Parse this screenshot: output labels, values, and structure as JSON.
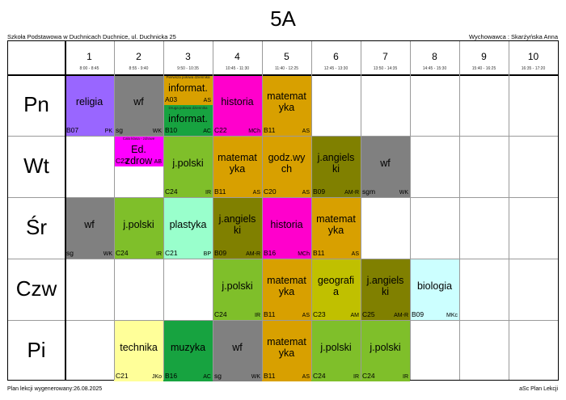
{
  "title": "5A",
  "school": "Szkoła Podstawowa w Duchnicach Duchnice, ul. Duchnicka 25",
  "teacher": "Wychowawca : Skarżyńska Anna",
  "footer_left": "Plan lekcji wygenerowany:26.08.2025",
  "footer_right": "aSc Plan Lekcji",
  "periods": [
    {
      "num": "1",
      "time": "8:00 - 8:45"
    },
    {
      "num": "2",
      "time": "8:55 - 9:40"
    },
    {
      "num": "3",
      "time": "9:50 - 10:35"
    },
    {
      "num": "4",
      "time": "10:45 - 11:30"
    },
    {
      "num": "5",
      "time": "11:40 - 12:25"
    },
    {
      "num": "6",
      "time": "12:45 - 13:30"
    },
    {
      "num": "7",
      "time": "13:50 - 14:35"
    },
    {
      "num": "8",
      "time": "14:45 - 15:30"
    },
    {
      "num": "9",
      "time": "15:40 - 16:25"
    },
    {
      "num": "10",
      "time": "16:35 - 17:20"
    }
  ],
  "days": [
    "Pn",
    "Wt",
    "Śr",
    "Czw",
    "Pi"
  ],
  "lessons": [
    {
      "day": 0,
      "period": 0,
      "subject": "religia",
      "room": "B07",
      "teacher": "PK",
      "color": "#9966ff"
    },
    {
      "day": 0,
      "period": 1,
      "subject": "wf",
      "room": "sg",
      "teacher": "WK",
      "color": "#808080"
    },
    {
      "day": 0,
      "period": 2,
      "half": "top",
      "note": "Pierwsza połowa dziennika",
      "subject": "informat.",
      "room": "A03",
      "teacher": "AS",
      "color": "#d8a000"
    },
    {
      "day": 0,
      "period": 2,
      "half": "bottom",
      "note": "Druga połowa dziennika",
      "subject": "informat.",
      "room": "B10",
      "teacher": "AC",
      "color": "#17a340"
    },
    {
      "day": 0,
      "period": 3,
      "subject": "historia",
      "room": "C22",
      "teacher": "MCh",
      "color": "#ff00cc"
    },
    {
      "day": 0,
      "period": 4,
      "subject": "matemat\nyka",
      "room": "B11",
      "teacher": "AS",
      "color": "#d8a000"
    },
    {
      "day": 1,
      "period": 1,
      "half": "top",
      "note": "Cała klasa - zdrowe",
      "subject": "Ed.\nzdrow",
      "room": "C22",
      "teacher": "AB",
      "color": "#ff00ff"
    },
    {
      "day": 1,
      "period": 2,
      "subject": "j.polski",
      "room": "C24",
      "teacher": "IR",
      "color": "#7fbf2a"
    },
    {
      "day": 1,
      "period": 3,
      "subject": "matemat\nyka",
      "room": "B11",
      "teacher": "AS",
      "color": "#d8a000"
    },
    {
      "day": 1,
      "period": 4,
      "subject": "godz.wy\nch",
      "room": "C20",
      "teacher": "AS",
      "color": "#d8a000"
    },
    {
      "day": 1,
      "period": 5,
      "subject": "j.angiels\nki",
      "room": "B09",
      "teacher": "AM-R",
      "color": "#808000"
    },
    {
      "day": 1,
      "period": 6,
      "subject": "wf",
      "room": "sgm",
      "teacher": "WK",
      "color": "#808080"
    },
    {
      "day": 2,
      "period": 0,
      "subject": "wf",
      "room": "sg",
      "teacher": "WK",
      "color": "#808080"
    },
    {
      "day": 2,
      "period": 1,
      "subject": "j.polski",
      "room": "C24",
      "teacher": "IR",
      "color": "#7fbf2a"
    },
    {
      "day": 2,
      "period": 2,
      "subject": "plastyka",
      "room": "C21",
      "teacher": "BP",
      "color": "#99ffcc"
    },
    {
      "day": 2,
      "period": 3,
      "subject": "j.angiels\nki",
      "room": "B09",
      "teacher": "AM-R",
      "color": "#808000"
    },
    {
      "day": 2,
      "period": 4,
      "subject": "historia",
      "room": "B16",
      "teacher": "MCh",
      "color": "#ff00cc"
    },
    {
      "day": 2,
      "period": 5,
      "subject": "matemat\nyka",
      "room": "B11",
      "teacher": "AS",
      "color": "#d8a000"
    },
    {
      "day": 3,
      "period": 3,
      "subject": "j.polski",
      "room": "C24",
      "teacher": "IR",
      "color": "#7fbf2a"
    },
    {
      "day": 3,
      "period": 4,
      "subject": "matemat\nyka",
      "room": "B11",
      "teacher": "AS",
      "color": "#d8a000"
    },
    {
      "day": 3,
      "period": 5,
      "subject": "geografi\na",
      "room": "C23",
      "teacher": "AM",
      "color": "#c0c000"
    },
    {
      "day": 3,
      "period": 6,
      "subject": "j.angiels\nki",
      "room": "C25",
      "teacher": "AM-R",
      "color": "#808000"
    },
    {
      "day": 3,
      "period": 7,
      "subject": "biologia",
      "room": "B09",
      "teacher": "MKc",
      "color": "#ccffff"
    },
    {
      "day": 4,
      "period": 1,
      "subject": "technika",
      "room": "C21",
      "teacher": "JKo",
      "color": "#ffff99"
    },
    {
      "day": 4,
      "period": 2,
      "subject": "muzyka",
      "room": "B16",
      "teacher": "AC",
      "color": "#17a340"
    },
    {
      "day": 4,
      "period": 3,
      "subject": "wf",
      "room": "sg",
      "teacher": "WK",
      "color": "#808080"
    },
    {
      "day": 4,
      "period": 4,
      "subject": "matemat\nyka",
      "room": "B11",
      "teacher": "AS",
      "color": "#d8a000"
    },
    {
      "day": 4,
      "period": 5,
      "subject": "j.polski",
      "room": "C24",
      "teacher": "IR",
      "color": "#7fbf2a"
    },
    {
      "day": 4,
      "period": 6,
      "subject": "j.polski",
      "room": "C24",
      "teacher": "IR",
      "color": "#7fbf2a"
    }
  ]
}
